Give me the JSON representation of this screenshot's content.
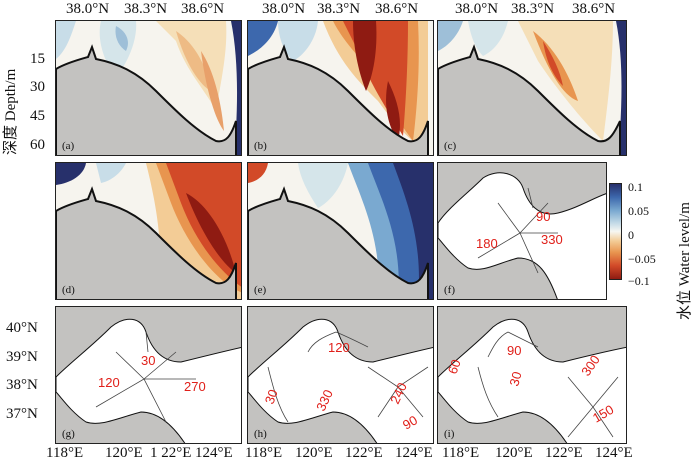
{
  "top_axis": {
    "labels_1": [
      "38.0°N",
      "38.3°N",
      "38.6°N"
    ],
    "labels_2": [
      "38.0°N",
      "38.3°N",
      "38.6°N"
    ],
    "labels_3": [
      "38.0°N",
      "38.3°N",
      "38.6°N"
    ]
  },
  "left_axis": {
    "depth_title": "深度 Depth/m",
    "depth_ticks": [
      "15",
      "30",
      "45",
      "60"
    ],
    "lat_ticks": [
      "40°N",
      "39°N",
      "38°N",
      "37°N"
    ]
  },
  "bottom_axis": {
    "labels_1": [
      "118°E",
      "120°E",
      "1 22°E",
      "124°E"
    ],
    "labels_2": [
      "118°E",
      "120°E",
      "122°E",
      "124°E"
    ],
    "labels_3": [
      "118°E",
      "120°E",
      "122°E",
      "124°E"
    ]
  },
  "colorbar": {
    "title": "水位 Water level/m",
    "ticks": [
      "0.1",
      "0.05",
      "0",
      "−0.05",
      "−0.1"
    ],
    "colors": [
      "#27306b",
      "#3d68ad",
      "#c8dde8",
      "#f7f7f2",
      "#e8954f",
      "#8f1b12"
    ]
  },
  "panels": {
    "a": "(a)",
    "b": "(b)",
    "c": "(c)",
    "d": "(d)",
    "e": "(e)",
    "f": "(f)",
    "g": "(g)",
    "h": "(h)",
    "i": "(i)"
  },
  "contours": {
    "f": [
      "90",
      "180",
      "330"
    ],
    "g": [
      "30",
      "120",
      "270"
    ],
    "h": [
      "120",
      "30",
      "330",
      "240",
      "90"
    ],
    "i": [
      "90",
      "60",
      "30",
      "300",
      "150"
    ]
  },
  "colors": {
    "land": "#c3c2c0",
    "contour_label": "#e0201a"
  }
}
